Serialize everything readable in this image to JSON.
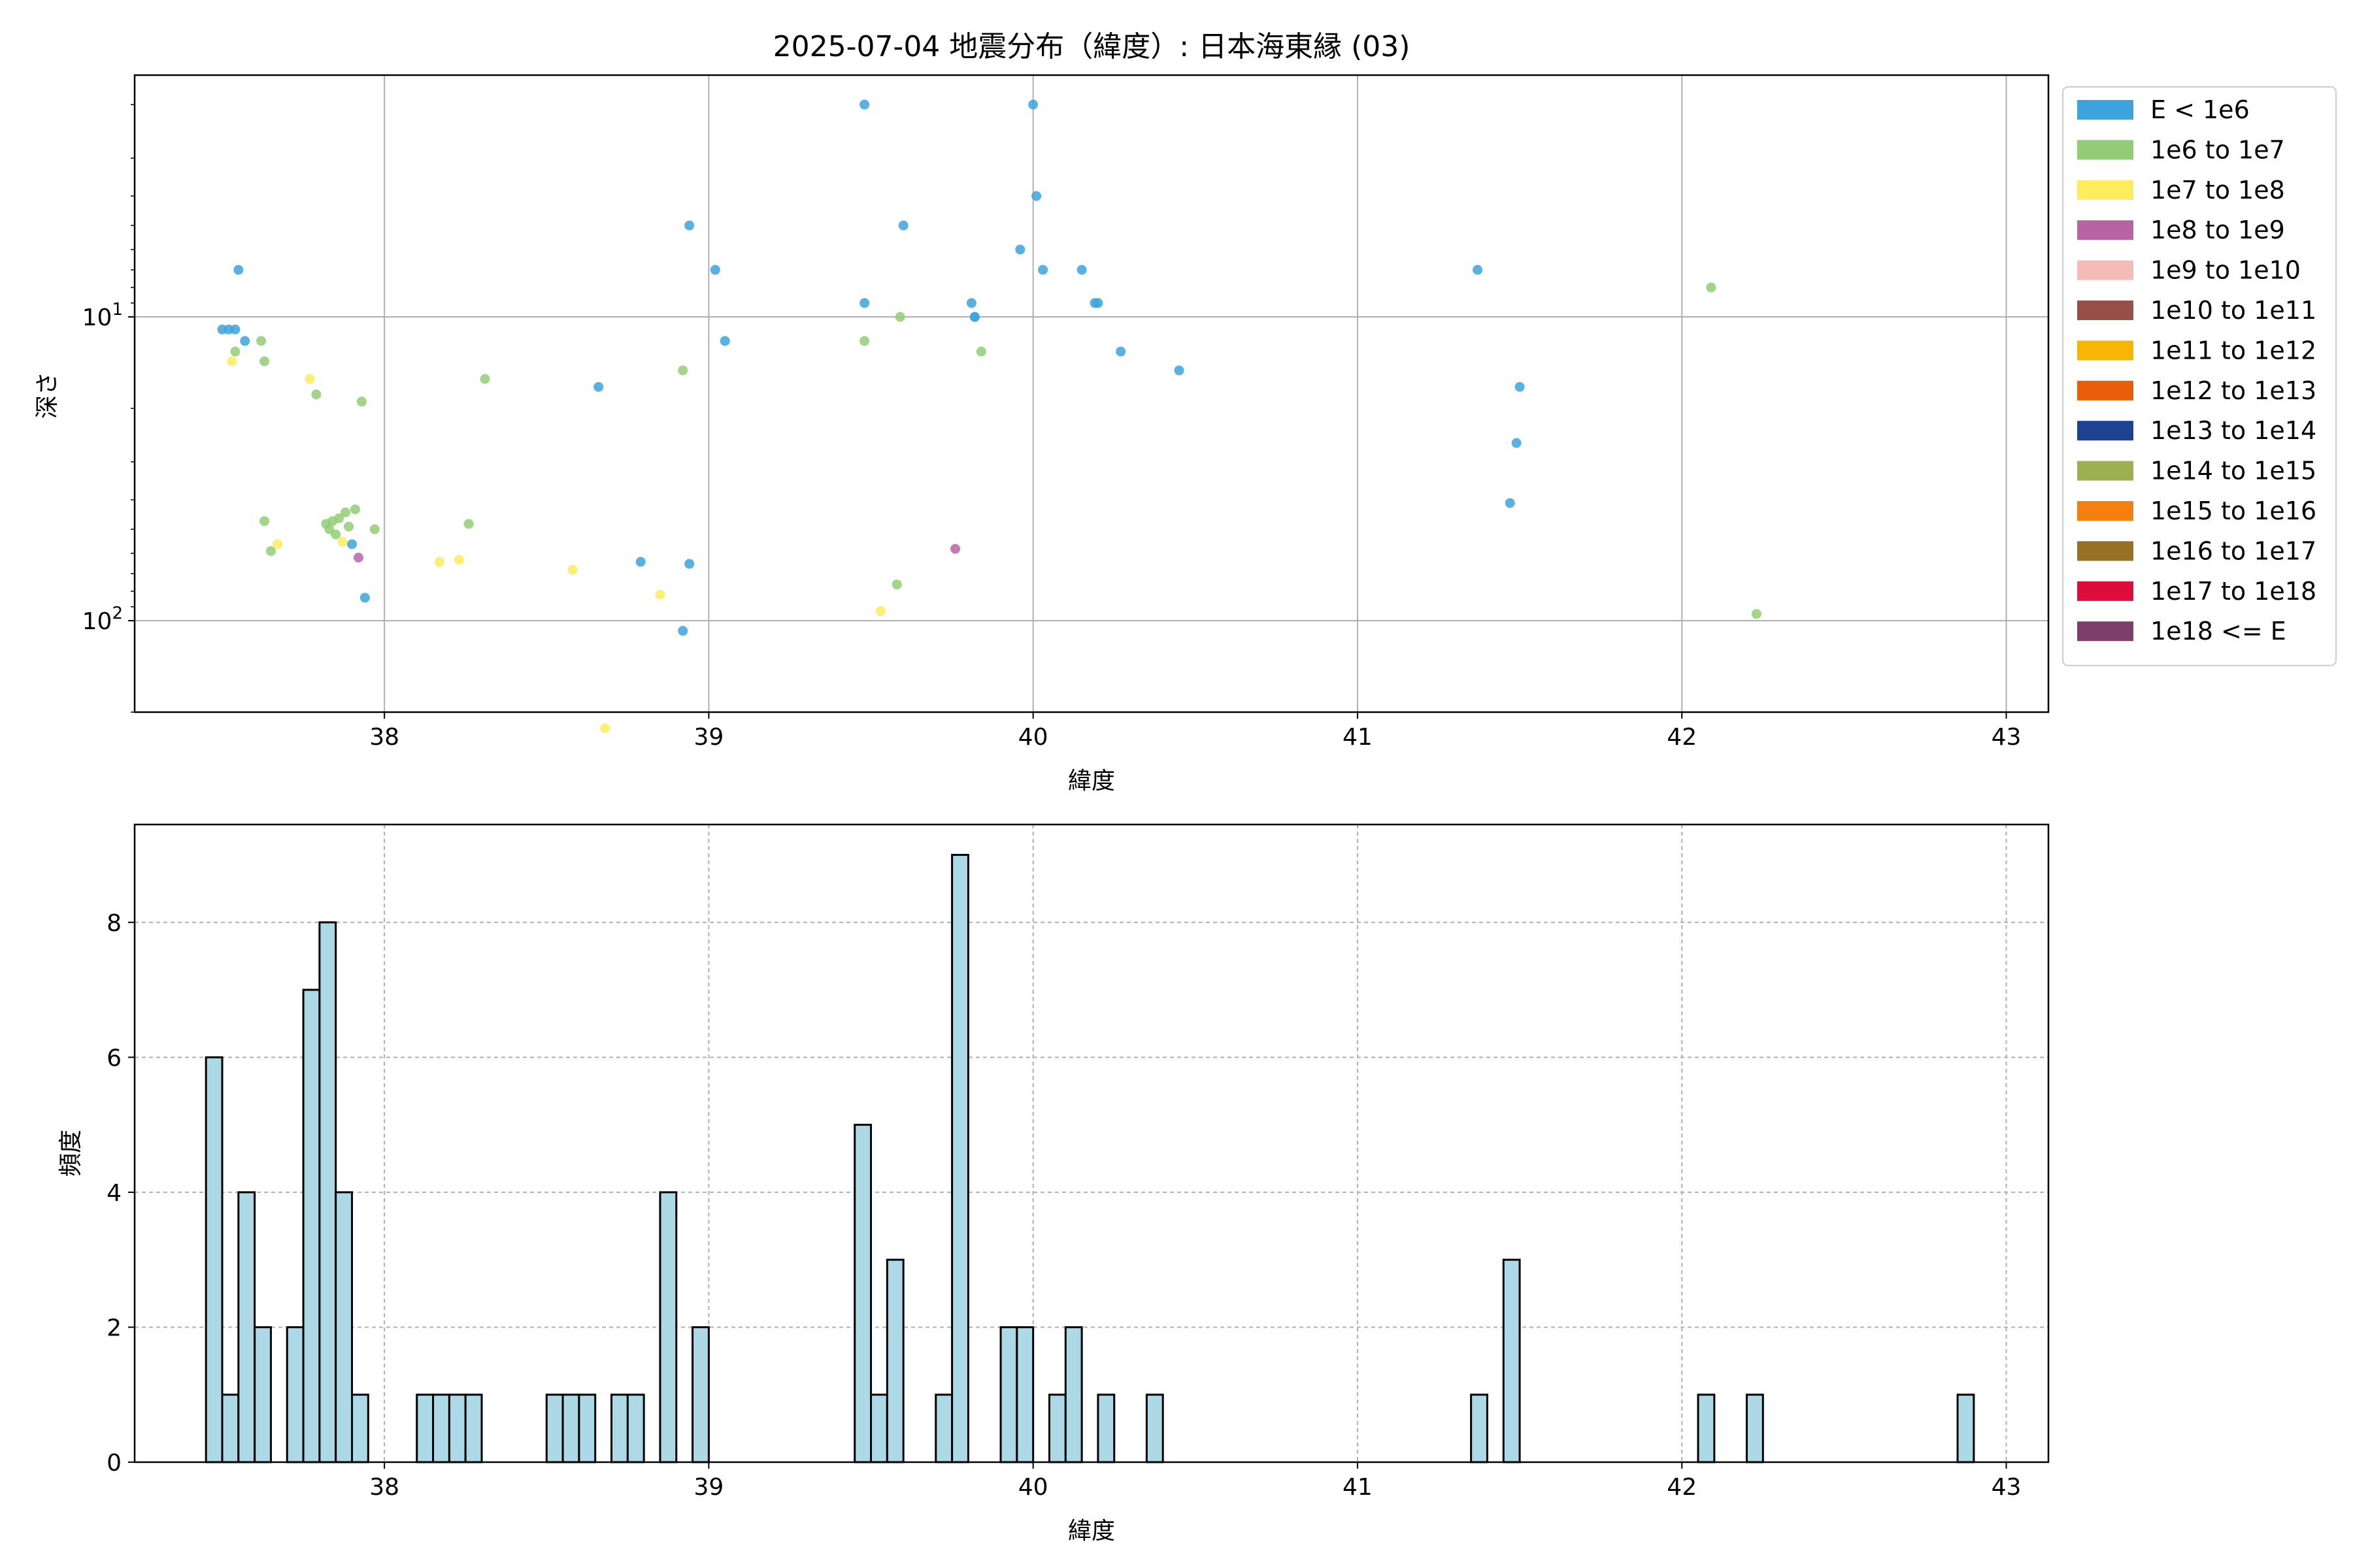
{
  "title": "2025-07-04 地震分布（緯度）: 日本海東縁 (03)",
  "chart_data": [
    {
      "type": "scatter",
      "xlabel": "緯度",
      "ylabel": "深さ",
      "x_scale": "linear",
      "y_scale": "log",
      "y_inverted": true,
      "xlim": [
        37.23,
        43.13
      ],
      "ylim": [
        200,
        1.6
      ],
      "xticks": [
        38,
        39,
        40,
        41,
        42,
        43
      ],
      "xtick_labels": [
        "38",
        "39",
        "40",
        "41",
        "42",
        "43"
      ],
      "yticks": [
        10,
        100
      ],
      "ytick_labels": [
        {
          "base": "10",
          "exp": "1"
        },
        {
          "base": "10",
          "exp": "2"
        }
      ],
      "grid": true,
      "legend_position": "outside-right",
      "series": [
        {
          "name": "E < 1e6",
          "color": "#3ca3dd",
          "points": [
            [
              37.5,
              11
            ],
            [
              37.52,
              11
            ],
            [
              37.54,
              11
            ],
            [
              37.55,
              7
            ],
            [
              37.57,
              12
            ],
            [
              37.9,
              56
            ],
            [
              37.94,
              84
            ],
            [
              38.66,
              17
            ],
            [
              38.79,
              64
            ],
            [
              38.92,
              108
            ],
            [
              38.94,
              5
            ],
            [
              38.94,
              65
            ],
            [
              39.02,
              7
            ],
            [
              39.05,
              12
            ],
            [
              39.48,
              2
            ],
            [
              39.48,
              9
            ],
            [
              39.6,
              5
            ],
            [
              39.81,
              9
            ],
            [
              39.82,
              10
            ],
            [
              39.82,
              10
            ],
            [
              39.96,
              6
            ],
            [
              40.0,
              2
            ],
            [
              40.01,
              4
            ],
            [
              40.03,
              7
            ],
            [
              40.15,
              7
            ],
            [
              40.19,
              9
            ],
            [
              40.2,
              9
            ],
            [
              40.27,
              13
            ],
            [
              40.45,
              15
            ],
            [
              41.37,
              7
            ],
            [
              41.47,
              41
            ],
            [
              41.49,
              26
            ],
            [
              41.5,
              17
            ]
          ]
        },
        {
          "name": "1e6 to 1e7",
          "color": "#92cd75",
          "points": [
            [
              37.54,
              13
            ],
            [
              37.62,
              12
            ],
            [
              37.63,
              14
            ],
            [
              37.63,
              47
            ],
            [
              37.65,
              59
            ],
            [
              37.79,
              18
            ],
            [
              37.82,
              48
            ],
            [
              37.83,
              50
            ],
            [
              37.84,
              47
            ],
            [
              37.85,
              52
            ],
            [
              37.86,
              46
            ],
            [
              37.88,
              44
            ],
            [
              37.89,
              49
            ],
            [
              37.91,
              43
            ],
            [
              37.93,
              19
            ],
            [
              37.97,
              50
            ],
            [
              38.26,
              48
            ],
            [
              38.31,
              16
            ],
            [
              38.92,
              15
            ],
            [
              39.48,
              12
            ],
            [
              39.58,
              76
            ],
            [
              39.59,
              10
            ],
            [
              39.84,
              13
            ],
            [
              42.09,
              8
            ],
            [
              42.23,
              95
            ]
          ]
        },
        {
          "name": "1e7 to 1e8",
          "color": "#fdec5e",
          "points": [
            [
              37.53,
              14
            ],
            [
              37.67,
              56
            ],
            [
              37.77,
              16
            ],
            [
              37.87,
              55
            ],
            [
              38.17,
              64
            ],
            [
              38.23,
              63
            ],
            [
              38.58,
              68
            ],
            [
              38.68,
              226
            ],
            [
              38.85,
              82
            ],
            [
              39.53,
              93
            ]
          ]
        },
        {
          "name": "1e8 to 1e9",
          "color": "#b864a3",
          "points": [
            [
              37.92,
              62
            ],
            [
              39.76,
              58
            ]
          ]
        },
        {
          "name": "1e9 to 1e10",
          "color": "#f5bcb7",
          "points": []
        },
        {
          "name": "1e10 to 1e11",
          "color": "#975047",
          "points": []
        },
        {
          "name": "1e11 to 1e12",
          "color": "#f7b508",
          "points": []
        },
        {
          "name": "1e12 to 1e13",
          "color": "#e85e0b",
          "points": []
        },
        {
          "name": "1e13 to 1e14",
          "color": "#1d4390",
          "points": []
        },
        {
          "name": "1e14 to 1e15",
          "color": "#9eaf52",
          "points": []
        },
        {
          "name": "1e15 to 1e16",
          "color": "#f57f10",
          "points": []
        },
        {
          "name": "1e16 to 1e17",
          "color": "#977026",
          "points": []
        },
        {
          "name": "1e17 to 1e18",
          "color": "#dc0c3b",
          "points": []
        },
        {
          "name": "1e18 <= E",
          "color": "#7d3e6c",
          "points": []
        }
      ]
    },
    {
      "type": "bar",
      "xlabel": "緯度",
      "ylabel": "頻度",
      "xlim": [
        37.23,
        43.13
      ],
      "ylim": [
        0,
        9.45
      ],
      "xticks": [
        38,
        39,
        40,
        41,
        42,
        43
      ],
      "xtick_labels": [
        "38",
        "39",
        "40",
        "41",
        "42",
        "43"
      ],
      "yticks": [
        0,
        2,
        4,
        6,
        8
      ],
      "ytick_labels": [
        "0",
        "2",
        "4",
        "6",
        "8"
      ],
      "grid": true,
      "bar_color": "#add8e6",
      "edge_color": "#000000",
      "bin_width": 0.05,
      "bins": [
        [
          37.475,
          6
        ],
        [
          37.525,
          1
        ],
        [
          37.575,
          4
        ],
        [
          37.625,
          2
        ],
        [
          37.725,
          2
        ],
        [
          37.775,
          7
        ],
        [
          37.825,
          8
        ],
        [
          37.875,
          4
        ],
        [
          37.925,
          1
        ],
        [
          38.125,
          1
        ],
        [
          38.175,
          1
        ],
        [
          38.225,
          1
        ],
        [
          38.275,
          1
        ],
        [
          38.525,
          1
        ],
        [
          38.575,
          1
        ],
        [
          38.625,
          1
        ],
        [
          38.725,
          1
        ],
        [
          38.775,
          1
        ],
        [
          38.875,
          4
        ],
        [
          38.975,
          2
        ],
        [
          39.475,
          5
        ],
        [
          39.525,
          1
        ],
        [
          39.575,
          3
        ],
        [
          39.725,
          1
        ],
        [
          39.775,
          9
        ],
        [
          39.925,
          2
        ],
        [
          39.975,
          2
        ],
        [
          40.075,
          1
        ],
        [
          40.125,
          2
        ],
        [
          40.225,
          1
        ],
        [
          40.375,
          1
        ],
        [
          41.375,
          1
        ],
        [
          41.475,
          3
        ],
        [
          42.075,
          1
        ],
        [
          42.225,
          1
        ],
        [
          42.875,
          1
        ]
      ]
    }
  ]
}
